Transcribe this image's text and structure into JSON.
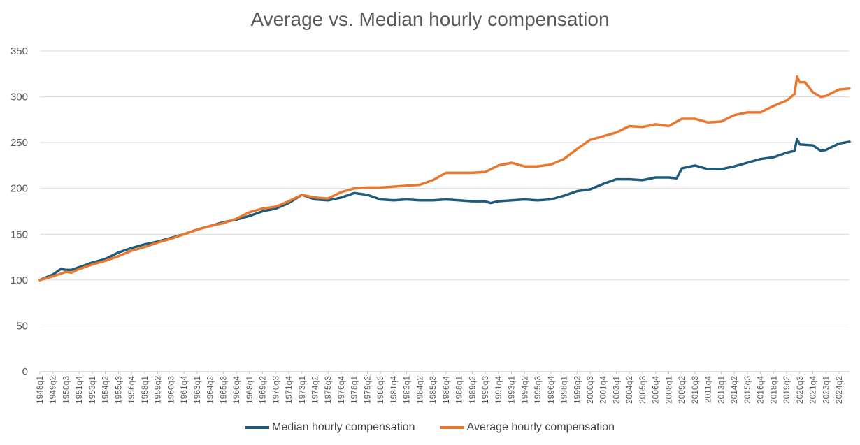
{
  "colors": {
    "median": "#1f5b7a",
    "average": "#e8782f",
    "grid": "#d9d9d9",
    "text": "#595959"
  },
  "chart_data": {
    "type": "line",
    "title": "Average vs. Median hourly compensation",
    "ylim": [
      0,
      350
    ],
    "yticks": [
      0,
      50,
      100,
      150,
      200,
      250,
      300,
      350
    ],
    "grid": "horizontal",
    "legend": "bottom",
    "x_start": "1948q1",
    "x_end": "2025q2",
    "xtick_labels": [
      "1948q1",
      "1949q2",
      "1950q3",
      "1951q4",
      "1953q1",
      "1954q2",
      "1955q3",
      "1956q4",
      "1958q1",
      "1959q2",
      "1960q3",
      "1961q4",
      "1963q1",
      "1964q2",
      "1965q3",
      "1966q4",
      "1968q1",
      "1969q2",
      "1970q3",
      "1971q4",
      "1973q1",
      "1974q2",
      "1975q3",
      "1976q4",
      "1978q1",
      "1979q2",
      "1980q3",
      "1981q4",
      "1983q1",
      "1984q2",
      "1985q3",
      "1986q4",
      "1988q1",
      "1989q2",
      "1990q3",
      "1991q4",
      "1993q1",
      "1994q2",
      "1995q3",
      "1996q4",
      "1998q1",
      "1999q2",
      "2000q3",
      "2001q4",
      "2003q1",
      "2004q2",
      "2005q3",
      "2006q4",
      "2008q1",
      "2009q2",
      "2010q3",
      "2011q4",
      "2013q1",
      "2014q2",
      "2015q3",
      "2016q4",
      "2018q1",
      "2019q2",
      "2020q3",
      "2021q4",
      "2023q1",
      "2024q2"
    ],
    "series": [
      {
        "name": "Median hourly compensation",
        "points": [
          [
            "1948q1",
            100
          ],
          [
            "1949q2",
            106
          ],
          [
            "1950q1",
            112
          ],
          [
            "1950q3",
            111
          ],
          [
            "1951q1",
            111
          ],
          [
            "1951q4",
            114
          ],
          [
            "1953q1",
            119
          ],
          [
            "1954q2",
            123
          ],
          [
            "1955q3",
            130
          ],
          [
            "1956q4",
            135
          ],
          [
            "1958q1",
            139
          ],
          [
            "1959q2",
            142
          ],
          [
            "1960q3",
            146
          ],
          [
            "1961q4",
            150
          ],
          [
            "1963q1",
            155
          ],
          [
            "1964q2",
            159
          ],
          [
            "1965q3",
            163
          ],
          [
            "1966q4",
            166
          ],
          [
            "1968q1",
            170
          ],
          [
            "1969q2",
            175
          ],
          [
            "1970q3",
            178
          ],
          [
            "1971q4",
            184
          ],
          [
            "1973q1",
            193
          ],
          [
            "1974q2",
            188
          ],
          [
            "1975q3",
            187
          ],
          [
            "1976q4",
            190
          ],
          [
            "1978q1",
            195
          ],
          [
            "1979q2",
            193
          ],
          [
            "1980q3",
            188
          ],
          [
            "1981q4",
            187
          ],
          [
            "1983q1",
            188
          ],
          [
            "1984q2",
            187
          ],
          [
            "1985q3",
            187
          ],
          [
            "1986q4",
            188
          ],
          [
            "1988q1",
            187
          ],
          [
            "1989q2",
            186
          ],
          [
            "1990q3",
            186
          ],
          [
            "1991q1",
            184
          ],
          [
            "1991q4",
            186
          ],
          [
            "1993q1",
            187
          ],
          [
            "1994q2",
            188
          ],
          [
            "1995q3",
            187
          ],
          [
            "1996q4",
            188
          ],
          [
            "1998q1",
            192
          ],
          [
            "1999q2",
            197
          ],
          [
            "2000q3",
            199
          ],
          [
            "2001q4",
            205
          ],
          [
            "2003q1",
            210
          ],
          [
            "2004q2",
            210
          ],
          [
            "2005q3",
            209
          ],
          [
            "2006q4",
            212
          ],
          [
            "2008q1",
            212
          ],
          [
            "2008q4",
            211
          ],
          [
            "2009q2",
            222
          ],
          [
            "2010q3",
            225
          ],
          [
            "2011q4",
            221
          ],
          [
            "2013q1",
            221
          ],
          [
            "2014q2",
            224
          ],
          [
            "2015q3",
            228
          ],
          [
            "2016q4",
            232
          ],
          [
            "2018q1",
            234
          ],
          [
            "2019q2",
            239
          ],
          [
            "2020q1",
            241
          ],
          [
            "2020q2",
            254
          ],
          [
            "2020q3",
            248
          ],
          [
            "2021q4",
            247
          ],
          [
            "2022q3",
            241
          ],
          [
            "2023q1",
            242
          ],
          [
            "2024q2",
            249
          ],
          [
            "2025q2",
            251
          ]
        ]
      },
      {
        "name": "Average hourly compensation",
        "points": [
          [
            "1948q1",
            100
          ],
          [
            "1949q2",
            104
          ],
          [
            "1950q3",
            109
          ],
          [
            "1951q1",
            108
          ],
          [
            "1951q4",
            112
          ],
          [
            "1953q1",
            117
          ],
          [
            "1954q2",
            121
          ],
          [
            "1955q3",
            126
          ],
          [
            "1956q4",
            132
          ],
          [
            "1958q1",
            136
          ],
          [
            "1959q2",
            141
          ],
          [
            "1960q3",
            145
          ],
          [
            "1961q4",
            150
          ],
          [
            "1963q1",
            155
          ],
          [
            "1964q2",
            159
          ],
          [
            "1965q3",
            162
          ],
          [
            "1966q4",
            167
          ],
          [
            "1968q1",
            174
          ],
          [
            "1969q2",
            178
          ],
          [
            "1970q3",
            180
          ],
          [
            "1971q4",
            186
          ],
          [
            "1973q1",
            193
          ],
          [
            "1974q2",
            190
          ],
          [
            "1975q3",
            189
          ],
          [
            "1976q4",
            196
          ],
          [
            "1978q1",
            200
          ],
          [
            "1979q2",
            201
          ],
          [
            "1980q3",
            201
          ],
          [
            "1981q4",
            202
          ],
          [
            "1983q1",
            203
          ],
          [
            "1984q2",
            204
          ],
          [
            "1985q3",
            209
          ],
          [
            "1986q4",
            217
          ],
          [
            "1988q1",
            217
          ],
          [
            "1989q2",
            217
          ],
          [
            "1990q3",
            218
          ],
          [
            "1991q4",
            225
          ],
          [
            "1993q1",
            228
          ],
          [
            "1994q2",
            224
          ],
          [
            "1995q3",
            224
          ],
          [
            "1996q4",
            226
          ],
          [
            "1998q1",
            232
          ],
          [
            "1999q2",
            243
          ],
          [
            "2000q3",
            253
          ],
          [
            "2001q4",
            257
          ],
          [
            "2003q1",
            261
          ],
          [
            "2004q2",
            268
          ],
          [
            "2005q3",
            267
          ],
          [
            "2006q4",
            270
          ],
          [
            "2008q1",
            268
          ],
          [
            "2009q2",
            276
          ],
          [
            "2010q3",
            276
          ],
          [
            "2011q4",
            272
          ],
          [
            "2013q1",
            273
          ],
          [
            "2014q2",
            280
          ],
          [
            "2015q3",
            283
          ],
          [
            "2016q4",
            283
          ],
          [
            "2018q1",
            290
          ],
          [
            "2019q2",
            296
          ],
          [
            "2020q1",
            303
          ],
          [
            "2020q2",
            322
          ],
          [
            "2020q3",
            316
          ],
          [
            "2021q1",
            316
          ],
          [
            "2021q4",
            305
          ],
          [
            "2022q3",
            300
          ],
          [
            "2023q1",
            301
          ],
          [
            "2024q2",
            308
          ],
          [
            "2025q2",
            309
          ]
        ]
      }
    ]
  }
}
